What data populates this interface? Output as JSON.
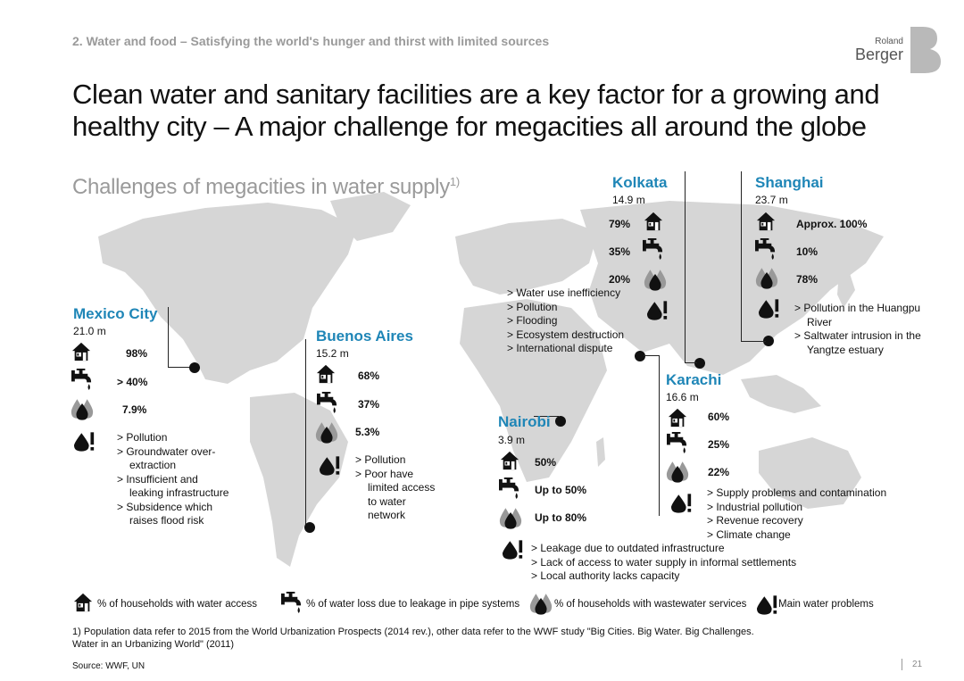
{
  "header": {
    "subtitle": "2. Water and food – Satisfying the world's hunger and thirst with limited sources",
    "title_line1": "Clean water and sanitary facilities are a key factor for a growing and",
    "title_line2": "healthy city – A major challenge for megacities all around the globe",
    "section": "Challenges of megacities in water supply",
    "section_sup": "1)"
  },
  "logo": {
    "small": "Roland",
    "big": "Berger"
  },
  "icons": {
    "household": "house-icon",
    "leakage": "faucet-icon",
    "wastewater": "drops-icon",
    "problems": "drop-exclamation-icon"
  },
  "colors": {
    "accent": "#1f86b7",
    "map": "#d6d6d6",
    "icon": "#111111"
  },
  "cities": {
    "mexico": {
      "name": "Mexico City",
      "pop": "21.0 m",
      "water": "98%",
      "leak": "> 40%",
      "waste": "7.9%",
      "problems": [
        "Pollution",
        "Groundwater over-extraction",
        "Insufficient and leaking infrastructure",
        "Subsidence which raises flood risk"
      ]
    },
    "buenos": {
      "name": "Buenos Aires",
      "pop": "15.2 m",
      "water": "68%",
      "leak": "37%",
      "waste": "5.3%",
      "problems": [
        "Pollution",
        "Poor have limited access to water network"
      ]
    },
    "nairobi": {
      "name": "Nairobi",
      "pop": "3.9 m",
      "water": "50%",
      "leak": "Up to 50%",
      "waste": "Up to 80%",
      "problems": [
        "Leakage due to outdated infrastructure",
        "Lack of access to water supply in informal settlements",
        "Local authority lacks capacity"
      ]
    },
    "kolkata": {
      "name": "Kolkata",
      "pop": "14.9 m",
      "water": "79%",
      "leak": "35%",
      "waste": "20%",
      "problems": [
        "Water use inefficiency",
        "Pollution",
        "Flooding",
        "Ecosystem destruction",
        "International dispute"
      ]
    },
    "karachi": {
      "name": "Karachi",
      "pop": "16.6 m",
      "water": "60%",
      "leak": "25%",
      "waste": "22%",
      "problems": [
        "Supply problems and contamination",
        "Industrial pollution",
        "Revenue recovery",
        "Climate change"
      ]
    },
    "shanghai": {
      "name": "Shanghai",
      "pop": "23.7 m",
      "water": "Approx. 100%",
      "leak": "10%",
      "waste": "78%",
      "problems": [
        "Pollution in the Huangpu River",
        "Saltwater intrusion in the Yangtze estuary"
      ]
    }
  },
  "legend": {
    "water": "% of households with water access",
    "leak": "% of water loss due to leakage in pipe systems",
    "waste": "% of households with wastewater services",
    "problems": "Main water problems"
  },
  "footer": {
    "note_line1": "1) Population data refer to 2015 from the World Urbanization Prospects (2014 rev.), other data refer to the WWF study \"Big Cities. Big Water. Big Challenges.",
    "note_line2": "Water in an Urbanizing World\" (2011)",
    "source": "Source: WWF, UN",
    "page": "21"
  }
}
